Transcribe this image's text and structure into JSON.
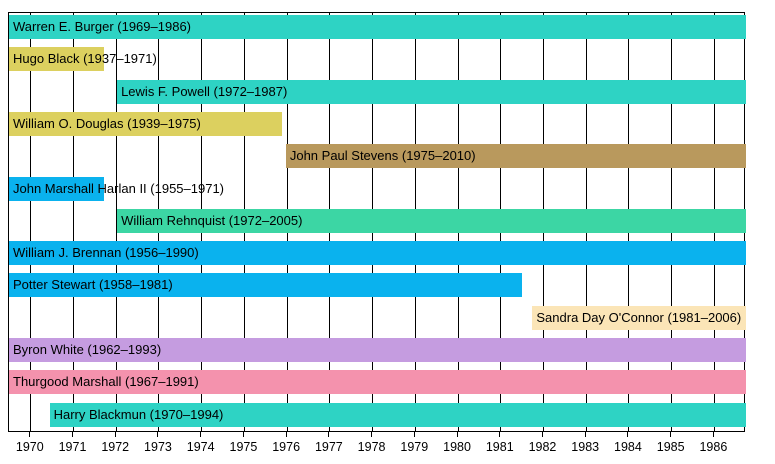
{
  "chart_data": {
    "type": "bar",
    "variant": "gantt_timeline",
    "title": "",
    "xlabel": "",
    "ylabel": "",
    "grid": true,
    "legend": "none",
    "x_axis": {
      "min": 1969.49,
      "max": 1986.74,
      "ticks": [
        1970,
        1971,
        1972,
        1973,
        1974,
        1975,
        1976,
        1977,
        1978,
        1979,
        1980,
        1981,
        1982,
        1983,
        1984,
        1985,
        1986
      ],
      "tick_labels": [
        "1970",
        "1971",
        "1972",
        "1973",
        "1974",
        "1975",
        "1976",
        "1977",
        "1978",
        "1979",
        "1980",
        "1981",
        "1982",
        "1983",
        "1984",
        "1985",
        "1986"
      ]
    },
    "rows": [
      {
        "label": "Warren E. Burger (1969–1986)",
        "name": "Warren E. Burger",
        "tenure": "1969–1986",
        "bar_start": 1969.49,
        "bar_end": 1986.74,
        "color": "#2ed3c4"
      },
      {
        "label": "Hugo Black (1937–1971)",
        "name": "Hugo Black",
        "tenure": "1937–1971",
        "bar_start": 1969.49,
        "bar_end": 1971.72,
        "color": "#dcd05f"
      },
      {
        "label": "Lewis F. Powell (1972–1987)",
        "name": "Lewis F. Powell",
        "tenure": "1972–1987",
        "bar_start": 1972.02,
        "bar_end": 1986.74,
        "color": "#2ed3c4"
      },
      {
        "label": "William O. Douglas (1939–1975)",
        "name": "William O. Douglas",
        "tenure": "1939–1975",
        "bar_start": 1969.49,
        "bar_end": 1975.87,
        "color": "#dcd05f"
      },
      {
        "label": "John Paul Stevens (1975–2010)",
        "name": "John Paul Stevens",
        "tenure": "1975–2010",
        "bar_start": 1975.97,
        "bar_end": 1986.74,
        "color": "#b9995d"
      },
      {
        "label": "John Marshall Harlan II (1955–1971)",
        "name": "John Marshall Harlan II",
        "tenure": "1955–1971",
        "bar_start": 1969.49,
        "bar_end": 1971.72,
        "color": "#0ab2ee"
      },
      {
        "label": "William Rehnquist (1972–2005)",
        "name": "William Rehnquist",
        "tenure": "1972–2005",
        "bar_start": 1972.02,
        "bar_end": 1986.74,
        "color": "#3cd6a4"
      },
      {
        "label": "William J. Brennan (1956–1990)",
        "name": "William J. Brennan",
        "tenure": "1956–1990",
        "bar_start": 1969.49,
        "bar_end": 1986.74,
        "color": "#0ab2ee"
      },
      {
        "label": "Potter Stewart (1958–1981)",
        "name": "Potter Stewart",
        "tenure": "1958–1981",
        "bar_start": 1969.49,
        "bar_end": 1981.5,
        "color": "#0ab2ee"
      },
      {
        "label": "Sandra Day O'Connor (1981–2006)",
        "name": "Sandra Day O'Connor",
        "tenure": "1981–2006",
        "bar_start": 1981.74,
        "bar_end": 1986.74,
        "color": "#fbe5b7"
      },
      {
        "label": "Byron White (1962–1993)",
        "name": "Byron White",
        "tenure": "1962–1993",
        "bar_start": 1969.49,
        "bar_end": 1986.74,
        "color": "#c59ce0"
      },
      {
        "label": "Thurgood Marshall (1967–1991)",
        "name": "Thurgood Marshall",
        "tenure": "1967–1991",
        "bar_start": 1969.49,
        "bar_end": 1986.74,
        "color": "#f492ad"
      },
      {
        "label": "Harry Blackmun (1970–1994)",
        "name": "Harry Blackmun",
        "tenure": "1970–1994",
        "bar_start": 1970.44,
        "bar_end": 1986.74,
        "color": "#2ed3c4"
      }
    ]
  },
  "colors": {
    "grid": "#000000",
    "border": "#000000",
    "text": "#000000",
    "background": "#ffffff"
  }
}
